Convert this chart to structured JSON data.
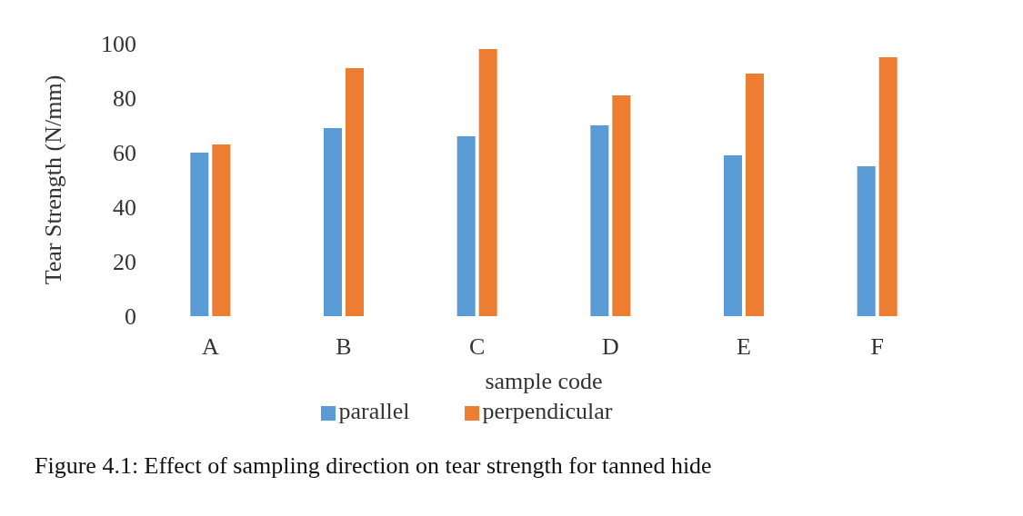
{
  "chart_data": {
    "type": "bar",
    "xlabel": "sample code",
    "ylabel": "Tear Strength (N/mm)",
    "categories": [
      "A",
      "B",
      "C",
      "D",
      "E",
      "F"
    ],
    "series": [
      {
        "name": "parallel",
        "color": "#5b9bd5",
        "values": [
          60,
          69,
          66,
          70,
          59,
          55
        ]
      },
      {
        "name": "perpendicular",
        "color": "#ed7d31",
        "values": [
          63,
          91,
          98,
          81,
          89,
          95
        ]
      }
    ],
    "ylim": [
      0,
      100
    ],
    "yticks": [
      0,
      20,
      40,
      60,
      80,
      100
    ],
    "grid": false,
    "legend": "bottom",
    "annotations": [
      "Figure 4.1: Effect of sampling direction on tear strength for tanned hide"
    ]
  }
}
